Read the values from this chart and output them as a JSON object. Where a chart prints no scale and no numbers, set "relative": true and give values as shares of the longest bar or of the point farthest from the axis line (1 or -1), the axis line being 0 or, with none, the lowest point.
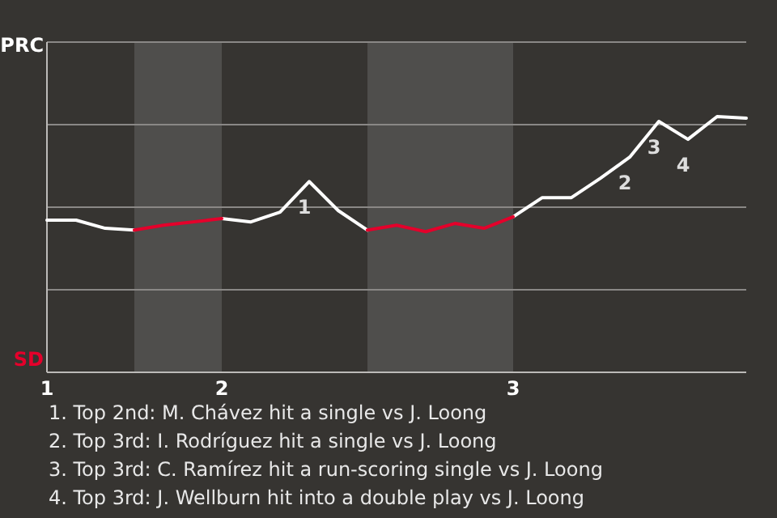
{
  "chart_data": {
    "type": "line",
    "relative": true,
    "categories": [
      "1",
      null,
      null,
      null,
      null,
      null,
      "2",
      null,
      null,
      null,
      null,
      null,
      null,
      null,
      null,
      null,
      "3",
      null,
      null,
      null,
      null,
      null,
      null,
      null,
      null
    ],
    "series": [
      {
        "color": "#ffffff",
        "values": [
          0.595,
          0.595,
          0.563,
          0.556,
          null,
          null,
          0.601,
          0.588,
          0.626,
          0.746,
          0.632,
          0.556,
          null,
          null,
          null,
          null,
          0.608,
          0.683,
          0.683,
          0.759,
          0.841,
          0.981,
          0.911,
          1,
          0.994
        ]
      },
      {
        "color": "#e4002b",
        "values": [
          null,
          null,
          null,
          0.556,
          0.575,
          0.588,
          0.601,
          null,
          null,
          null,
          null,
          0.556,
          0.575,
          0.55,
          0.582,
          0.563,
          0.608,
          null,
          null,
          null,
          null,
          null,
          null,
          null,
          null
        ]
      }
    ],
    "grid": "y",
    "annotations": [
      "PRC",
      "SD",
      {
        "text": "1",
        "y": 0.746
      },
      {
        "text": "2",
        "y": 0.841
      },
      {
        "text": "3",
        "y": 0.981
      },
      {
        "text": "4",
        "y": 0.911
      },
      "1. Top 2nd: M. Chávez hit a single vs J. Loong",
      "2. Top 3rd: I. Rodríguez hit a single vs J. Loong",
      "3. Top 3rd: C. Ramírez hit a run-scoring single vs J. Loong",
      "4. Top 3rd: J. Wellburn hit into a double play vs J. Loong"
    ]
  }
}
